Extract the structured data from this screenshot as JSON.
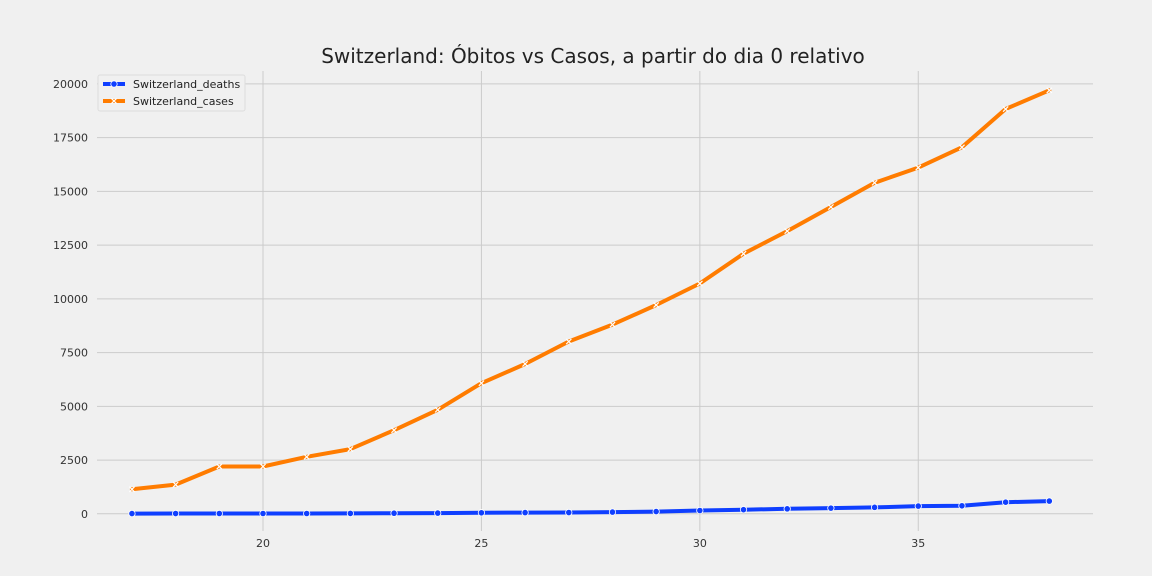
{
  "chart_data": {
    "type": "line",
    "title": "Switzerland: Óbitos vs Casos, a partir do dia 0 relativo",
    "xlabel": "",
    "ylabel": "",
    "xlim": [
      16.2,
      39.0
    ],
    "ylim": [
      -800,
      20600
    ],
    "xticks": [
      20,
      25,
      30,
      35
    ],
    "yticks": [
      0,
      2500,
      5000,
      7500,
      10000,
      12500,
      15000,
      17500,
      20000
    ],
    "grid": true,
    "legend_position": "top-left",
    "x": [
      17,
      18,
      19,
      20,
      21,
      22,
      23,
      24,
      25,
      26,
      27,
      28,
      29,
      30,
      31,
      32,
      33,
      34,
      35,
      36,
      37,
      38
    ],
    "series": [
      {
        "name": "Switzerland_deaths",
        "color": "#0f3fff",
        "marker": "circle",
        "values": [
          11,
          13,
          14,
          14,
          14,
          19,
          27,
          33,
          48,
          56,
          60,
          80,
          104,
          153,
          191,
          231,
          264,
          300,
          359,
          373,
          540,
          591
        ]
      },
      {
        "name": "Switzerland_cases",
        "color": "#ff7c00",
        "marker": "x",
        "values": [
          1139,
          1359,
          2200,
          2200,
          2650,
          3010,
          3888,
          4840,
          6077,
          6971,
          8015,
          8800,
          9714,
          10714,
          12100,
          13152,
          14274,
          15400,
          16108,
          17050,
          18830,
          19700
        ]
      }
    ]
  }
}
